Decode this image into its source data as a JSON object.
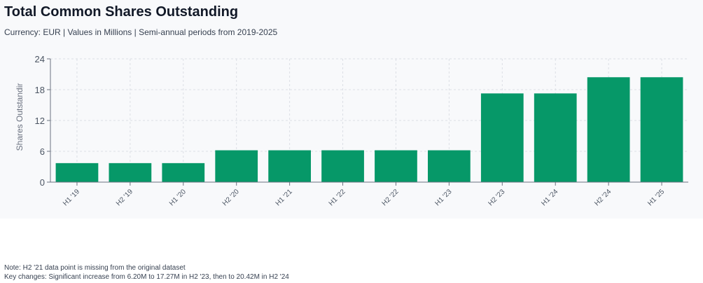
{
  "title": "Total Common Shares Outstanding",
  "subtitle": "Currency: EUR | Values in Millions | Semi-annual periods from 2019-2025",
  "notes": [
    "Note: H2 '21 data point is missing from the original dataset",
    "Key changes: Significant increase from 6.20M to 17.27M in H2 '23, then to 20.42M in H2 '24"
  ],
  "colors": {
    "bar": "#069868",
    "grid": "#dcdfe5",
    "axis": "#6b7280",
    "panel": "#f8f9fb"
  },
  "chart_data": {
    "type": "bar",
    "title": "Total Common Shares Outstanding",
    "ylabel": "Shares Outstandir",
    "xlabel": "",
    "categories": [
      "H1 '19",
      "H2 '19",
      "H1 '20",
      "H2 '20",
      "H1 '21",
      "H1 '22",
      "H2 '22",
      "H1 '23",
      "H2 '23",
      "H1 '24",
      "H2 '24",
      "H1 '25"
    ],
    "values": [
      3.7,
      3.7,
      3.7,
      6.2,
      6.2,
      6.2,
      6.2,
      6.2,
      17.27,
      17.27,
      20.42,
      20.42
    ],
    "yticks": [
      0,
      6,
      12,
      18,
      24
    ],
    "ylim": [
      0,
      24
    ],
    "grid": true,
    "legend": "none"
  }
}
